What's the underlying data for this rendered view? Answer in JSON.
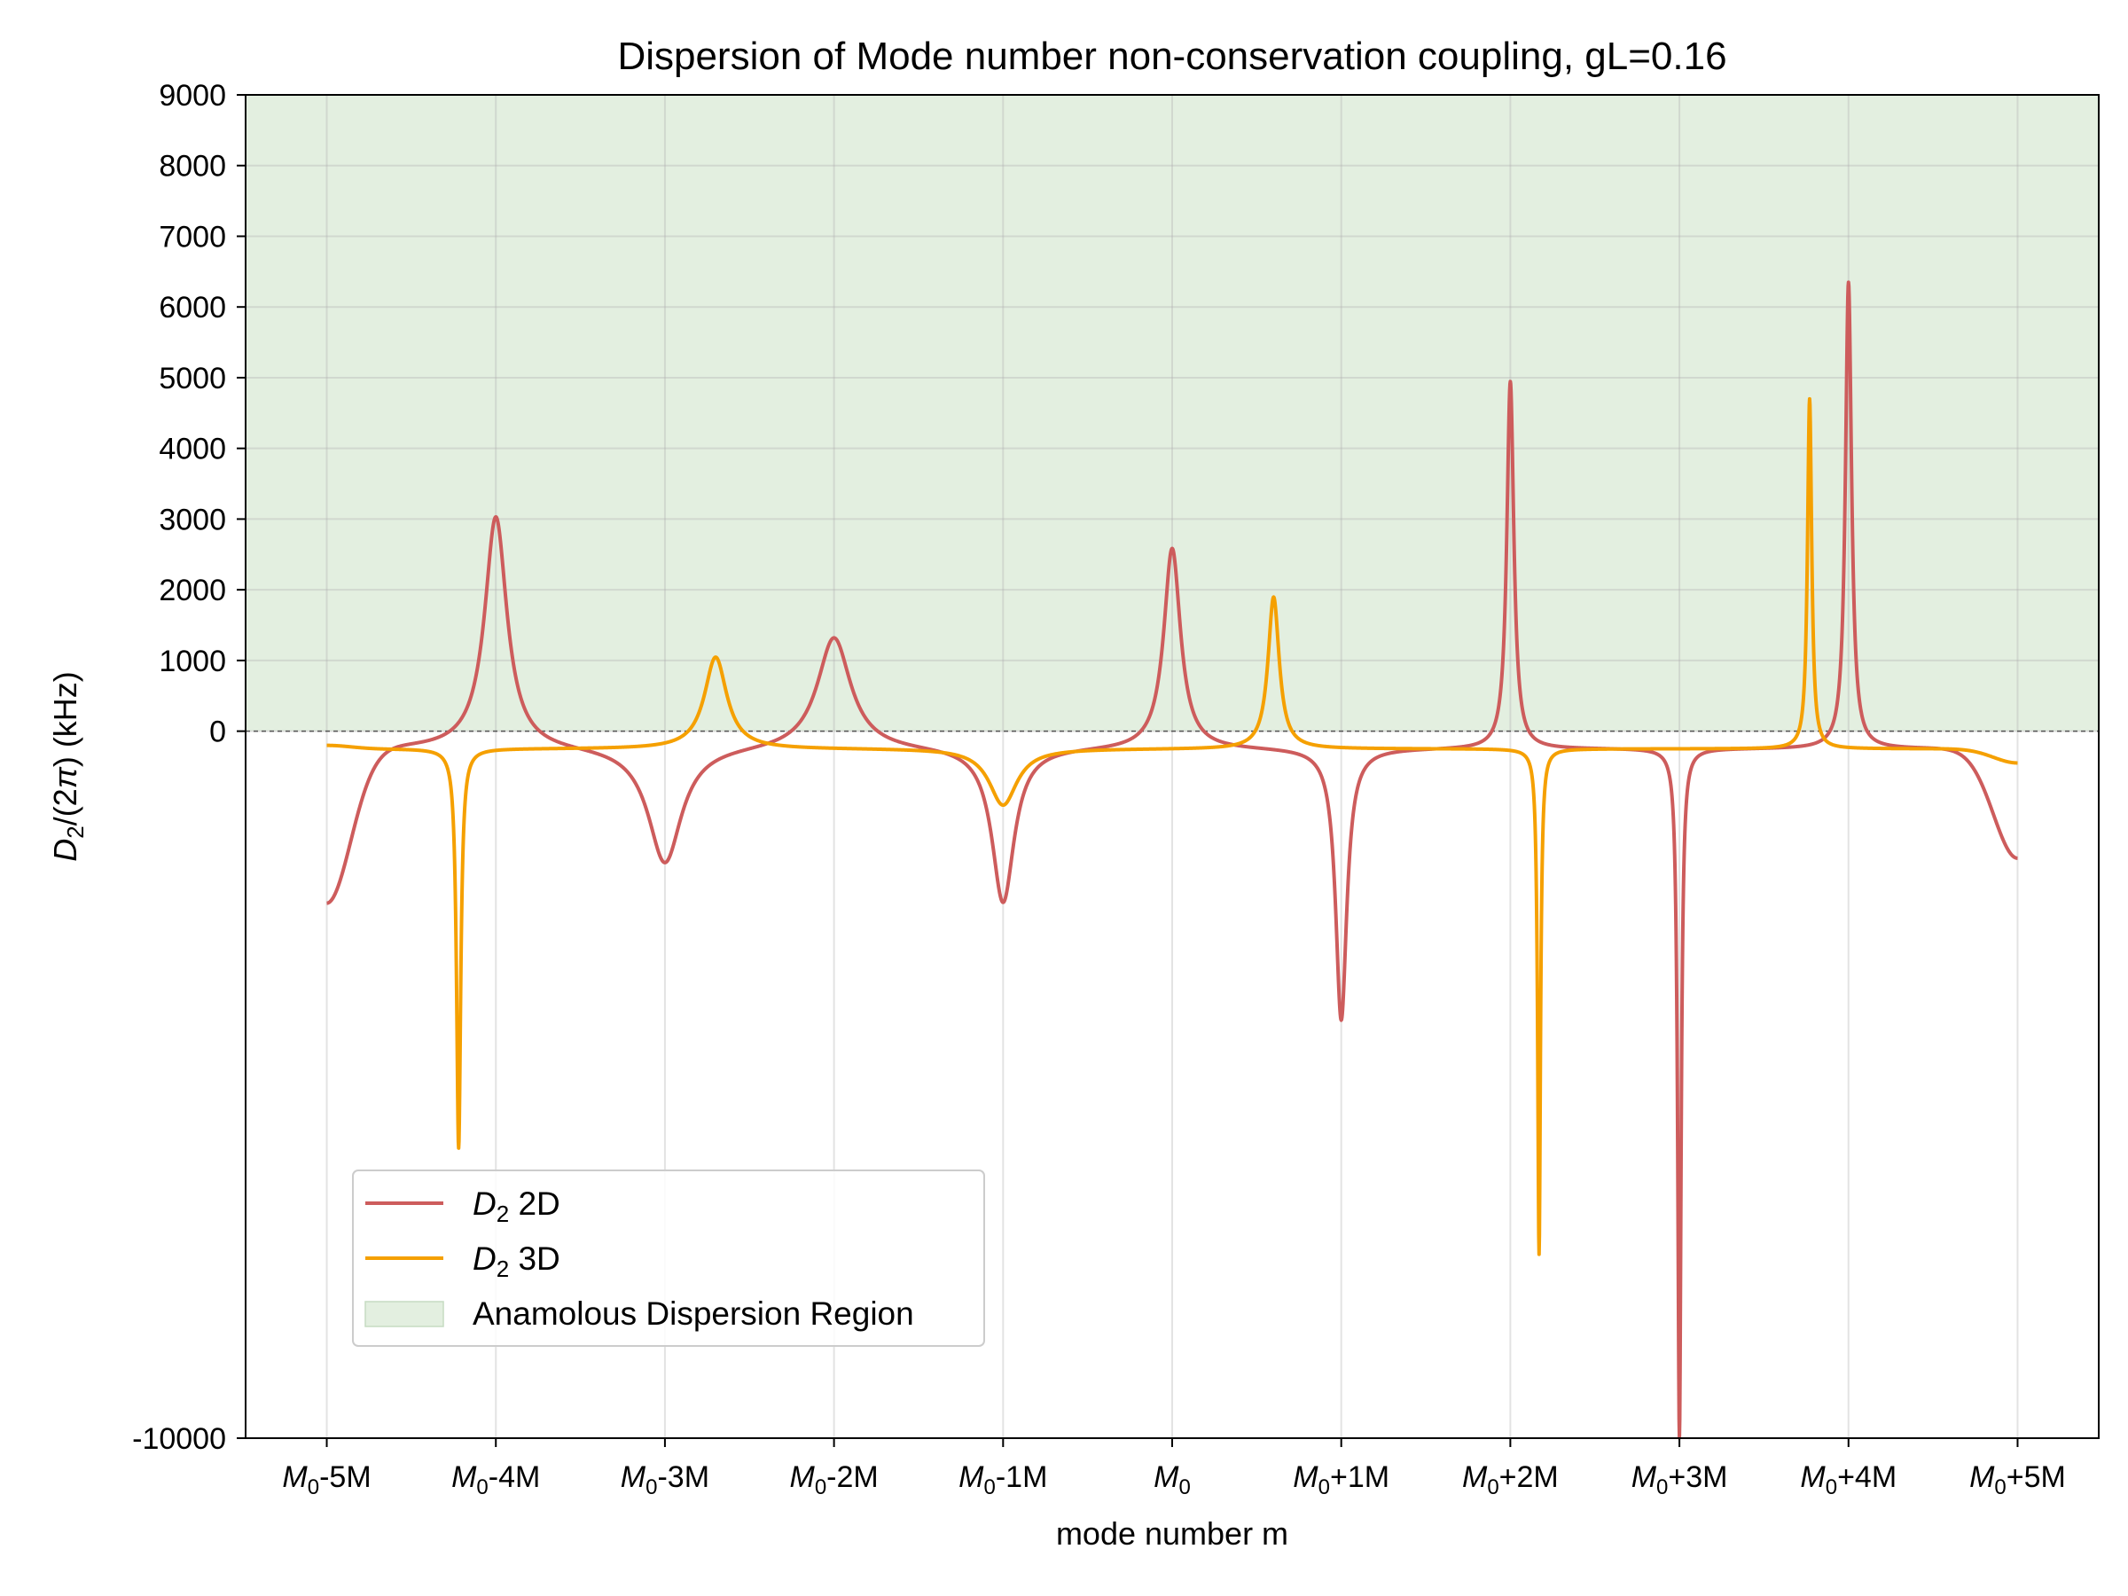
{
  "chart_data": {
    "type": "line",
    "title": "Dispersion of Mode number non-conservation coupling, gL=0.16",
    "xlabel": "mode number m",
    "ylabel": "D_2/(2π) (kHz)",
    "xlim": [
      -5.48,
      5.48
    ],
    "ylim": [
      -10000,
      9000
    ],
    "x_tick_values": [
      -5,
      -4,
      -3,
      -2,
      -1,
      0,
      1,
      2,
      3,
      4,
      5
    ],
    "x_tick_labels": [
      {
        "base": "M",
        "sub": "0",
        "suffix": "-5M"
      },
      {
        "base": "M",
        "sub": "0",
        "suffix": "-4M"
      },
      {
        "base": "M",
        "sub": "0",
        "suffix": "-3M"
      },
      {
        "base": "M",
        "sub": "0",
        "suffix": "-2M"
      },
      {
        "base": "M",
        "sub": "0",
        "suffix": "-1M"
      },
      {
        "base": "M",
        "sub": "0",
        "suffix": ""
      },
      {
        "base": "M",
        "sub": "0",
        "suffix": "+1M"
      },
      {
        "base": "M",
        "sub": "0",
        "suffix": "+2M"
      },
      {
        "base": "M",
        "sub": "0",
        "suffix": "+3M"
      },
      {
        "base": "M",
        "sub": "0",
        "suffix": "+4M"
      },
      {
        "base": "M",
        "sub": "0",
        "suffix": "+5M"
      }
    ],
    "y_ticks": [
      9000,
      8000,
      7000,
      6000,
      5000,
      4000,
      3000,
      2000,
      1000,
      0,
      -10000
    ],
    "y_tick_labels": [
      "9000",
      "8000",
      "7000",
      "6000",
      "5000",
      "4000",
      "3000",
      "2000",
      "1000",
      "0",
      "-10000"
    ],
    "grid": true,
    "shaded_region": {
      "label": "Anamolous Dispersion Region",
      "y_from": 0,
      "y_to": 9000,
      "color": "#e3efe0"
    },
    "legend_position": "lower left",
    "series": [
      {
        "name": "D_2 2D",
        "label_parts": {
          "base": "D",
          "sub": "2",
          "suffix": " 2D"
        },
        "color": "#cd5c5c",
        "baseline": -250,
        "features": [
          {
            "type": "start",
            "x": -5.0,
            "y": -2450
          },
          {
            "x": -4.0,
            "y": 3050,
            "width": 0.08
          },
          {
            "x": -3.0,
            "y": -1900,
            "width": 0.12
          },
          {
            "x": -2.0,
            "y": 1350,
            "width": 0.12
          },
          {
            "x": -1.0,
            "y": -2450,
            "width": 0.08
          },
          {
            "x": 0.0,
            "y": 2600,
            "width": 0.06
          },
          {
            "x": 1.0,
            "y": -4100,
            "width": 0.04
          },
          {
            "x": 2.0,
            "y": 4950,
            "width": 0.025
          },
          {
            "x": 3.0,
            "y": -10000,
            "width": 0.012
          },
          {
            "x": 4.0,
            "y": 6350,
            "width": 0.022
          },
          {
            "type": "end",
            "x": 5.0,
            "y": -1800
          }
        ]
      },
      {
        "name": "D_2 3D",
        "label_parts": {
          "base": "D",
          "sub": "2",
          "suffix": " 3D"
        },
        "color": "#f5a000",
        "baseline": -250,
        "features": [
          {
            "type": "start",
            "x": -5.0,
            "y": -200
          },
          {
            "x": -4.22,
            "y": -5900,
            "width": 0.015
          },
          {
            "x": -2.7,
            "y": 1050,
            "width": 0.08
          },
          {
            "x": -1.0,
            "y": -1050,
            "width": 0.1
          },
          {
            "x": 0.6,
            "y": 1900,
            "width": 0.04
          },
          {
            "x": 2.17,
            "y": -7400,
            "width": 0.01
          },
          {
            "x": 3.77,
            "y": 4700,
            "width": 0.015
          },
          {
            "type": "end",
            "x": 5.0,
            "y": -450
          }
        ]
      }
    ]
  }
}
